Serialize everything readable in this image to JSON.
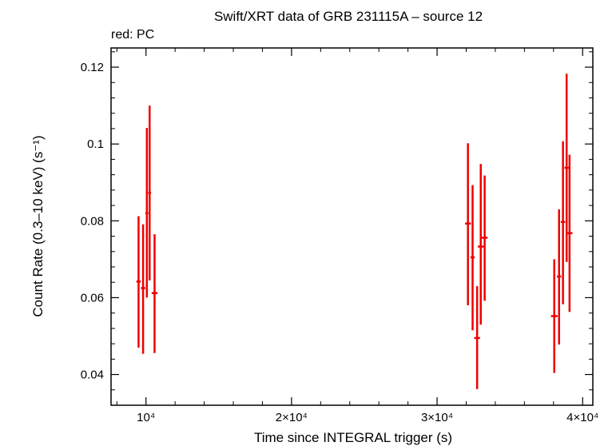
{
  "chart_data": {
    "type": "scatter",
    "title": "Swift/XRT data of GRB 231115A – source 12",
    "subtitle": "red: PC",
    "xlabel": "Time since INTEGRAL trigger (s)",
    "ylabel": "Count Rate (0.3–10 keV) (s⁻¹)",
    "xlim": [
      7600,
      40700
    ],
    "ylim": [
      0.032,
      0.125
    ],
    "x_ticks": [
      {
        "value": 10000,
        "label": "10⁴"
      },
      {
        "value": 20000,
        "label": "2×10⁴"
      },
      {
        "value": 30000,
        "label": "3×10⁴"
      },
      {
        "value": 40000,
        "label": "4×10⁴"
      }
    ],
    "y_ticks": [
      {
        "value": 0.04,
        "label": "0.04"
      },
      {
        "value": 0.06,
        "label": "0.06"
      },
      {
        "value": 0.08,
        "label": "0.08"
      },
      {
        "value": 0.1,
        "label": "0.1"
      },
      {
        "value": 0.12,
        "label": "0.12"
      }
    ],
    "grid": false,
    "series": [
      {
        "color": "#ee0000",
        "points": [
          {
            "x": 9490,
            "xerr": 150,
            "y": 0.0642,
            "ylo": 0.047,
            "yhi": 0.0812
          },
          {
            "x": 9800,
            "xerr": 150,
            "y": 0.0625,
            "ylo": 0.0454,
            "yhi": 0.0791
          },
          {
            "x": 10060,
            "xerr": 100,
            "y": 0.082,
            "ylo": 0.06,
            "yhi": 0.1042
          },
          {
            "x": 10250,
            "xerr": 100,
            "y": 0.0873,
            "ylo": 0.0645,
            "yhi": 0.11
          },
          {
            "x": 10590,
            "xerr": 200,
            "y": 0.0612,
            "ylo": 0.0456,
            "yhi": 0.0765
          },
          {
            "x": 32120,
            "xerr": 200,
            "y": 0.0793,
            "ylo": 0.058,
            "yhi": 0.1002
          },
          {
            "x": 32440,
            "xerr": 150,
            "y": 0.0705,
            "ylo": 0.0515,
            "yhi": 0.0893
          },
          {
            "x": 32750,
            "xerr": 200,
            "y": 0.0495,
            "ylo": 0.0362,
            "yhi": 0.063
          },
          {
            "x": 33000,
            "xerr": 200,
            "y": 0.0733,
            "ylo": 0.053,
            "yhi": 0.0948
          },
          {
            "x": 33270,
            "xerr": 200,
            "y": 0.0756,
            "ylo": 0.0592,
            "yhi": 0.0918
          },
          {
            "x": 38050,
            "xerr": 230,
            "y": 0.0552,
            "ylo": 0.0404,
            "yhi": 0.07
          },
          {
            "x": 38380,
            "xerr": 150,
            "y": 0.0655,
            "ylo": 0.0478,
            "yhi": 0.083
          },
          {
            "x": 38650,
            "xerr": 150,
            "y": 0.0797,
            "ylo": 0.0583,
            "yhi": 0.1007
          },
          {
            "x": 38900,
            "xerr": 150,
            "y": 0.0938,
            "ylo": 0.0693,
            "yhi": 0.1183
          },
          {
            "x": 39100,
            "xerr": 200,
            "y": 0.0768,
            "ylo": 0.0563,
            "yhi": 0.0972
          }
        ]
      }
    ]
  }
}
